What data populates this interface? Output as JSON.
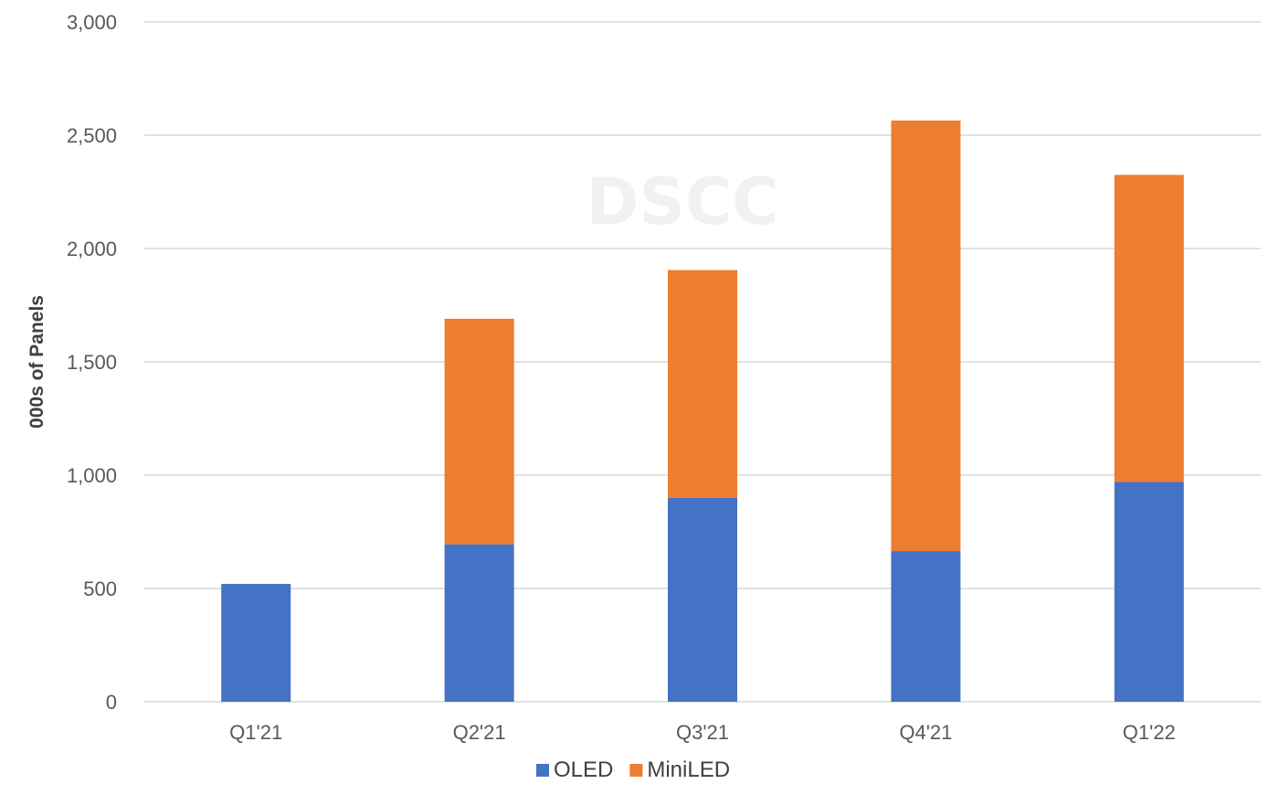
{
  "watermark": "DSCC",
  "chart_data": {
    "type": "bar",
    "stacked": true,
    "categories": [
      "Q1'21",
      "Q2'21",
      "Q3'21",
      "Q4'21",
      "Q1'22"
    ],
    "series": [
      {
        "name": "OLED",
        "values": [
          520,
          695,
          900,
          665,
          970
        ],
        "color": "#4472C4"
      },
      {
        "name": "MiniLED",
        "values": [
          0,
          995,
          1005,
          1900,
          1355
        ],
        "color": "#ED7D31"
      }
    ],
    "title": "",
    "xlabel": "",
    "ylabel": "000s of Panels",
    "ylim": [
      0,
      3000
    ],
    "yticks": [
      0,
      500,
      1000,
      1500,
      2000,
      2500,
      3000
    ],
    "ytick_labels": [
      "0",
      "500",
      "1,000",
      "1,500",
      "2,000",
      "2,500",
      "3,000"
    ],
    "grid": true,
    "gridline_color": "#d9d9d9",
    "legend_position": "bottom"
  }
}
